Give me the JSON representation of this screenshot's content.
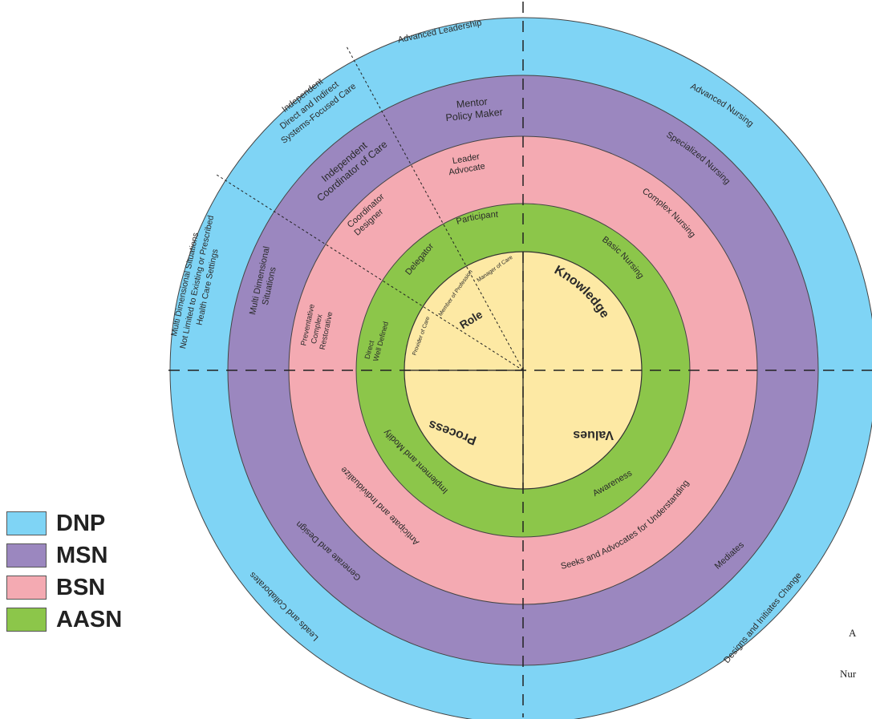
{
  "legend": [
    {
      "label": "DNP",
      "color": "#7fd4f5"
    },
    {
      "label": "MSN",
      "color": "#9b87bf"
    },
    {
      "label": "BSN",
      "color": "#f4aab2"
    },
    {
      "label": "AASN",
      "color": "#8cc64a"
    }
  ],
  "rings": {
    "dnp": {
      "color": "#7fd4f5"
    },
    "msn": {
      "color": "#9b87bf"
    },
    "bsn": {
      "color": "#f4aab2"
    },
    "aasn": {
      "color": "#8cc64a"
    },
    "core": {
      "color": "#fde9a4"
    }
  },
  "quadrants": {
    "knowledge": "Knowledge",
    "values": "Values",
    "process": "Process",
    "role": "Role"
  },
  "role_segments": {
    "provider": "Provider of Care",
    "member": "Member of Profession",
    "manager": "Manager of Care"
  },
  "dnp_labels": {
    "advanced_leadership": "Advanced Leadership",
    "advanced_nursing": "Advanced Nursing",
    "designs_change": "Designs and Initiates Change",
    "leads": "Leads and Collaborates",
    "systems_care": [
      "Independent",
      "Direct and Indirect",
      "Systems-Focused Care"
    ],
    "multi_dim": [
      "Multi Dimensional Situations",
      "Not Limited to Existing or Prescribed",
      "Health Care Settings"
    ]
  },
  "msn_labels": {
    "mentor": [
      "Mentor",
      "Policy Maker"
    ],
    "specialized": "Specialized Nursing",
    "mediates": "Mediates",
    "generates": "Generate and Design",
    "coordinator": [
      "Independent",
      "Coordinator of Care"
    ],
    "multi_dim": [
      "Multi Dimensional",
      "Situations"
    ]
  },
  "bsn_labels": {
    "leader": [
      "Leader",
      "Advocate"
    ],
    "complex": "Complex Nursing",
    "seeks": "Seeks and Advocates for Understanding",
    "anticipate": "Anticipate and Individualize",
    "coordinator": [
      "Coordinator",
      "Designer"
    ],
    "prev": [
      "Preventative",
      "Complex",
      "Restorative"
    ]
  },
  "aasn_labels": {
    "participant": "Participant",
    "basic": "Basic Nursing",
    "awareness": "Awareness",
    "implement": "Implement and Modify",
    "delegator": "Delegator",
    "direct": [
      "Direct",
      "Well Defined"
    ]
  },
  "edge_fragments": {
    "a": "A",
    "nur": "Nur"
  }
}
